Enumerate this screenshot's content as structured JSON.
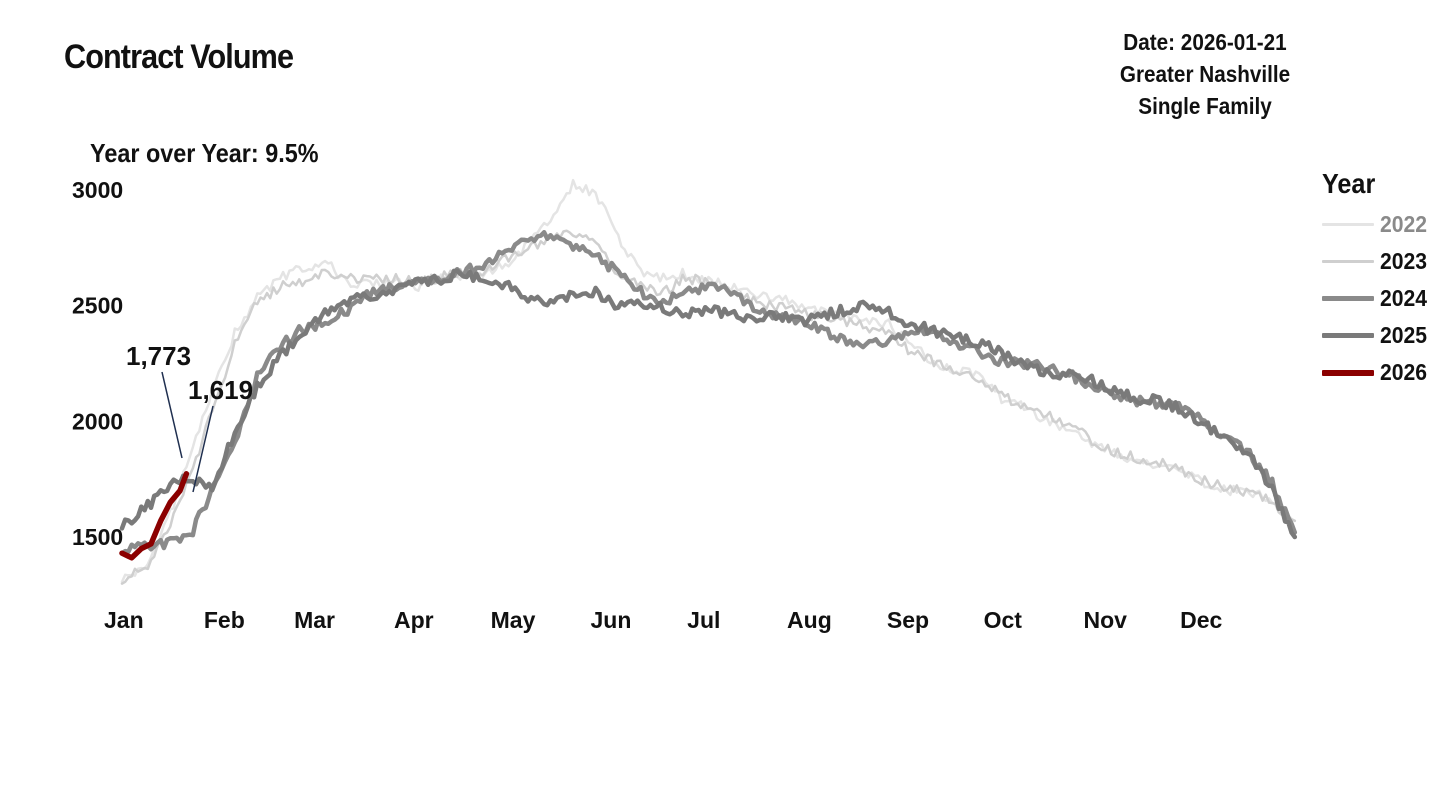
{
  "header": {
    "title": "Contract Volume",
    "date_line": "Date: 2026-01-21",
    "region": "Greater Nashville",
    "property_type": "Single Family",
    "yoy": "Year over Year: 9.5%"
  },
  "legend": {
    "title": "Year",
    "items": [
      {
        "label": "2022",
        "color": "#e4e4e4",
        "text_color": "#8a8a8a"
      },
      {
        "label": "2023",
        "color": "#cfcfcf",
        "text_color": "#111111"
      },
      {
        "label": "2024",
        "color": "#8a8a8a",
        "text_color": "#111111"
      },
      {
        "label": "2025",
        "color": "#7a7a7a",
        "text_color": "#111111"
      },
      {
        "label": "2026",
        "color": "#8b0000",
        "text_color": "#111111"
      }
    ]
  },
  "annotations": [
    {
      "label": "1,773",
      "year": "2026",
      "x": 21,
      "y": 1773
    },
    {
      "label": "1,619",
      "year": "2025",
      "x": 21,
      "y": 1619
    }
  ],
  "chart_data": {
    "type": "line",
    "title": "Contract Volume",
    "xlabel": "",
    "ylabel": "",
    "x_unit": "day of year",
    "xlim": [
      1,
      366
    ],
    "ylim": [
      1300,
      3100
    ],
    "y_ticks": [
      1500,
      2000,
      2500,
      3000
    ],
    "x_ticks": [
      {
        "label": "Jan",
        "x": 1
      },
      {
        "label": "Feb",
        "x": 32
      },
      {
        "label": "Mar",
        "x": 60
      },
      {
        "label": "Apr",
        "x": 91
      },
      {
        "label": "May",
        "x": 121
      },
      {
        "label": "Jun",
        "x": 152
      },
      {
        "label": "Jul",
        "x": 182
      },
      {
        "label": "Aug",
        "x": 213
      },
      {
        "label": "Sep",
        "x": 244
      },
      {
        "label": "Oct",
        "x": 274
      },
      {
        "label": "Nov",
        "x": 305
      },
      {
        "label": "Dec",
        "x": 335
      }
    ],
    "grid": false,
    "legend_position": "right",
    "series": [
      {
        "name": "2022",
        "color": "#e4e4e4",
        "width": 2.5,
        "x": [
          1,
          8,
          15,
          22,
          29,
          36,
          43,
          50,
          57,
          64,
          71,
          78,
          85,
          92,
          99,
          106,
          113,
          120,
          127,
          134,
          141,
          148,
          155,
          162,
          169,
          176,
          183,
          190,
          197,
          204,
          211,
          218,
          225,
          232,
          239,
          246,
          253,
          260,
          267,
          274,
          281,
          288,
          295,
          302,
          309,
          316,
          323,
          330,
          337,
          344,
          351,
          358,
          365
        ],
        "y": [
          1320,
          1360,
          1560,
          1840,
          2130,
          2380,
          2540,
          2620,
          2660,
          2690,
          2600,
          2590,
          2600,
          2580,
          2610,
          2630,
          2640,
          2680,
          2760,
          2880,
          3020,
          2990,
          2800,
          2640,
          2620,
          2640,
          2610,
          2580,
          2540,
          2540,
          2510,
          2480,
          2460,
          2440,
          2420,
          2330,
          2260,
          2220,
          2200,
          2100,
          2060,
          2000,
          1960,
          1900,
          1860,
          1820,
          1800,
          1780,
          1730,
          1700,
          1700,
          1650,
          1570
        ]
      },
      {
        "name": "2023",
        "color": "#cfcfcf",
        "width": 2.5,
        "x": [
          1,
          8,
          15,
          22,
          29,
          36,
          43,
          50,
          57,
          64,
          71,
          78,
          85,
          92,
          99,
          106,
          113,
          120,
          127,
          134,
          141,
          148,
          155,
          162,
          169,
          176,
          183,
          190,
          197,
          204,
          211,
          218,
          225,
          232,
          239,
          246,
          253,
          260,
          267,
          274,
          281,
          288,
          295,
          302,
          309,
          316,
          323,
          330,
          337,
          344,
          351,
          358,
          365
        ],
        "y": [
          1320,
          1360,
          1520,
          1760,
          2040,
          2330,
          2520,
          2580,
          2600,
          2640,
          2620,
          2610,
          2620,
          2600,
          2620,
          2640,
          2650,
          2700,
          2740,
          2800,
          2820,
          2760,
          2640,
          2580,
          2560,
          2620,
          2600,
          2560,
          2520,
          2500,
          2470,
          2450,
          2430,
          2410,
          2380,
          2300,
          2260,
          2220,
          2190,
          2110,
          2070,
          2030,
          1980,
          1920,
          1870,
          1840,
          1820,
          1790,
          1740,
          1710,
          1690,
          1650,
          1570
        ]
      },
      {
        "name": "2024",
        "color": "#8a8a8a",
        "width": 4.5,
        "x": [
          1,
          8,
          15,
          22,
          29,
          36,
          43,
          50,
          57,
          64,
          71,
          78,
          85,
          92,
          99,
          106,
          113,
          120,
          127,
          134,
          141,
          148,
          155,
          162,
          169,
          176,
          183,
          190,
          197,
          204,
          211,
          218,
          225,
          232,
          239,
          246,
          253,
          260,
          267,
          274,
          281,
          288,
          295,
          302,
          309,
          316,
          323,
          330,
          337,
          344,
          351,
          358,
          365
        ],
        "y": [
          1440,
          1460,
          1470,
          1500,
          1700,
          1900,
          2200,
          2320,
          2400,
          2430,
          2480,
          2550,
          2580,
          2600,
          2610,
          2640,
          2680,
          2740,
          2790,
          2810,
          2760,
          2720,
          2640,
          2560,
          2520,
          2560,
          2580,
          2560,
          2500,
          2460,
          2440,
          2400,
          2350,
          2330,
          2350,
          2390,
          2380,
          2340,
          2300,
          2260,
          2250,
          2230,
          2200,
          2160,
          2120,
          2090,
          2080,
          2060,
          2000,
          1930,
          1860,
          1730,
          1520
        ]
      },
      {
        "name": "2025",
        "color": "#7a7a7a",
        "width": 4.5,
        "x": [
          1,
          8,
          15,
          22,
          29,
          36,
          43,
          50,
          57,
          64,
          71,
          78,
          85,
          92,
          99,
          106,
          113,
          120,
          127,
          134,
          141,
          148,
          155,
          162,
          169,
          176,
          183,
          190,
          197,
          204,
          211,
          218,
          225,
          232,
          239,
          246,
          253,
          260,
          267,
          274,
          281,
          288,
          295,
          302,
          309,
          316,
          323,
          330,
          337,
          344,
          351,
          358,
          365
        ],
        "y": [
          1550,
          1620,
          1720,
          1760,
          1720,
          1950,
          2150,
          2280,
          2380,
          2470,
          2520,
          2540,
          2570,
          2600,
          2610,
          2640,
          2620,
          2590,
          2530,
          2520,
          2540,
          2560,
          2500,
          2510,
          2490,
          2470,
          2480,
          2460,
          2450,
          2460,
          2430,
          2460,
          2480,
          2500,
          2470,
          2420,
          2390,
          2370,
          2340,
          2300,
          2240,
          2210,
          2200,
          2180,
          2130,
          2100,
          2090,
          2050,
          1980,
          1930,
          1850,
          1700,
          1500
        ]
      },
      {
        "name": "2026",
        "color": "#8b0000",
        "width": 5.5,
        "x": [
          1,
          4,
          7,
          10,
          13,
          16,
          19,
          21
        ],
        "y": [
          1430,
          1410,
          1450,
          1470,
          1570,
          1650,
          1700,
          1773
        ]
      }
    ]
  }
}
